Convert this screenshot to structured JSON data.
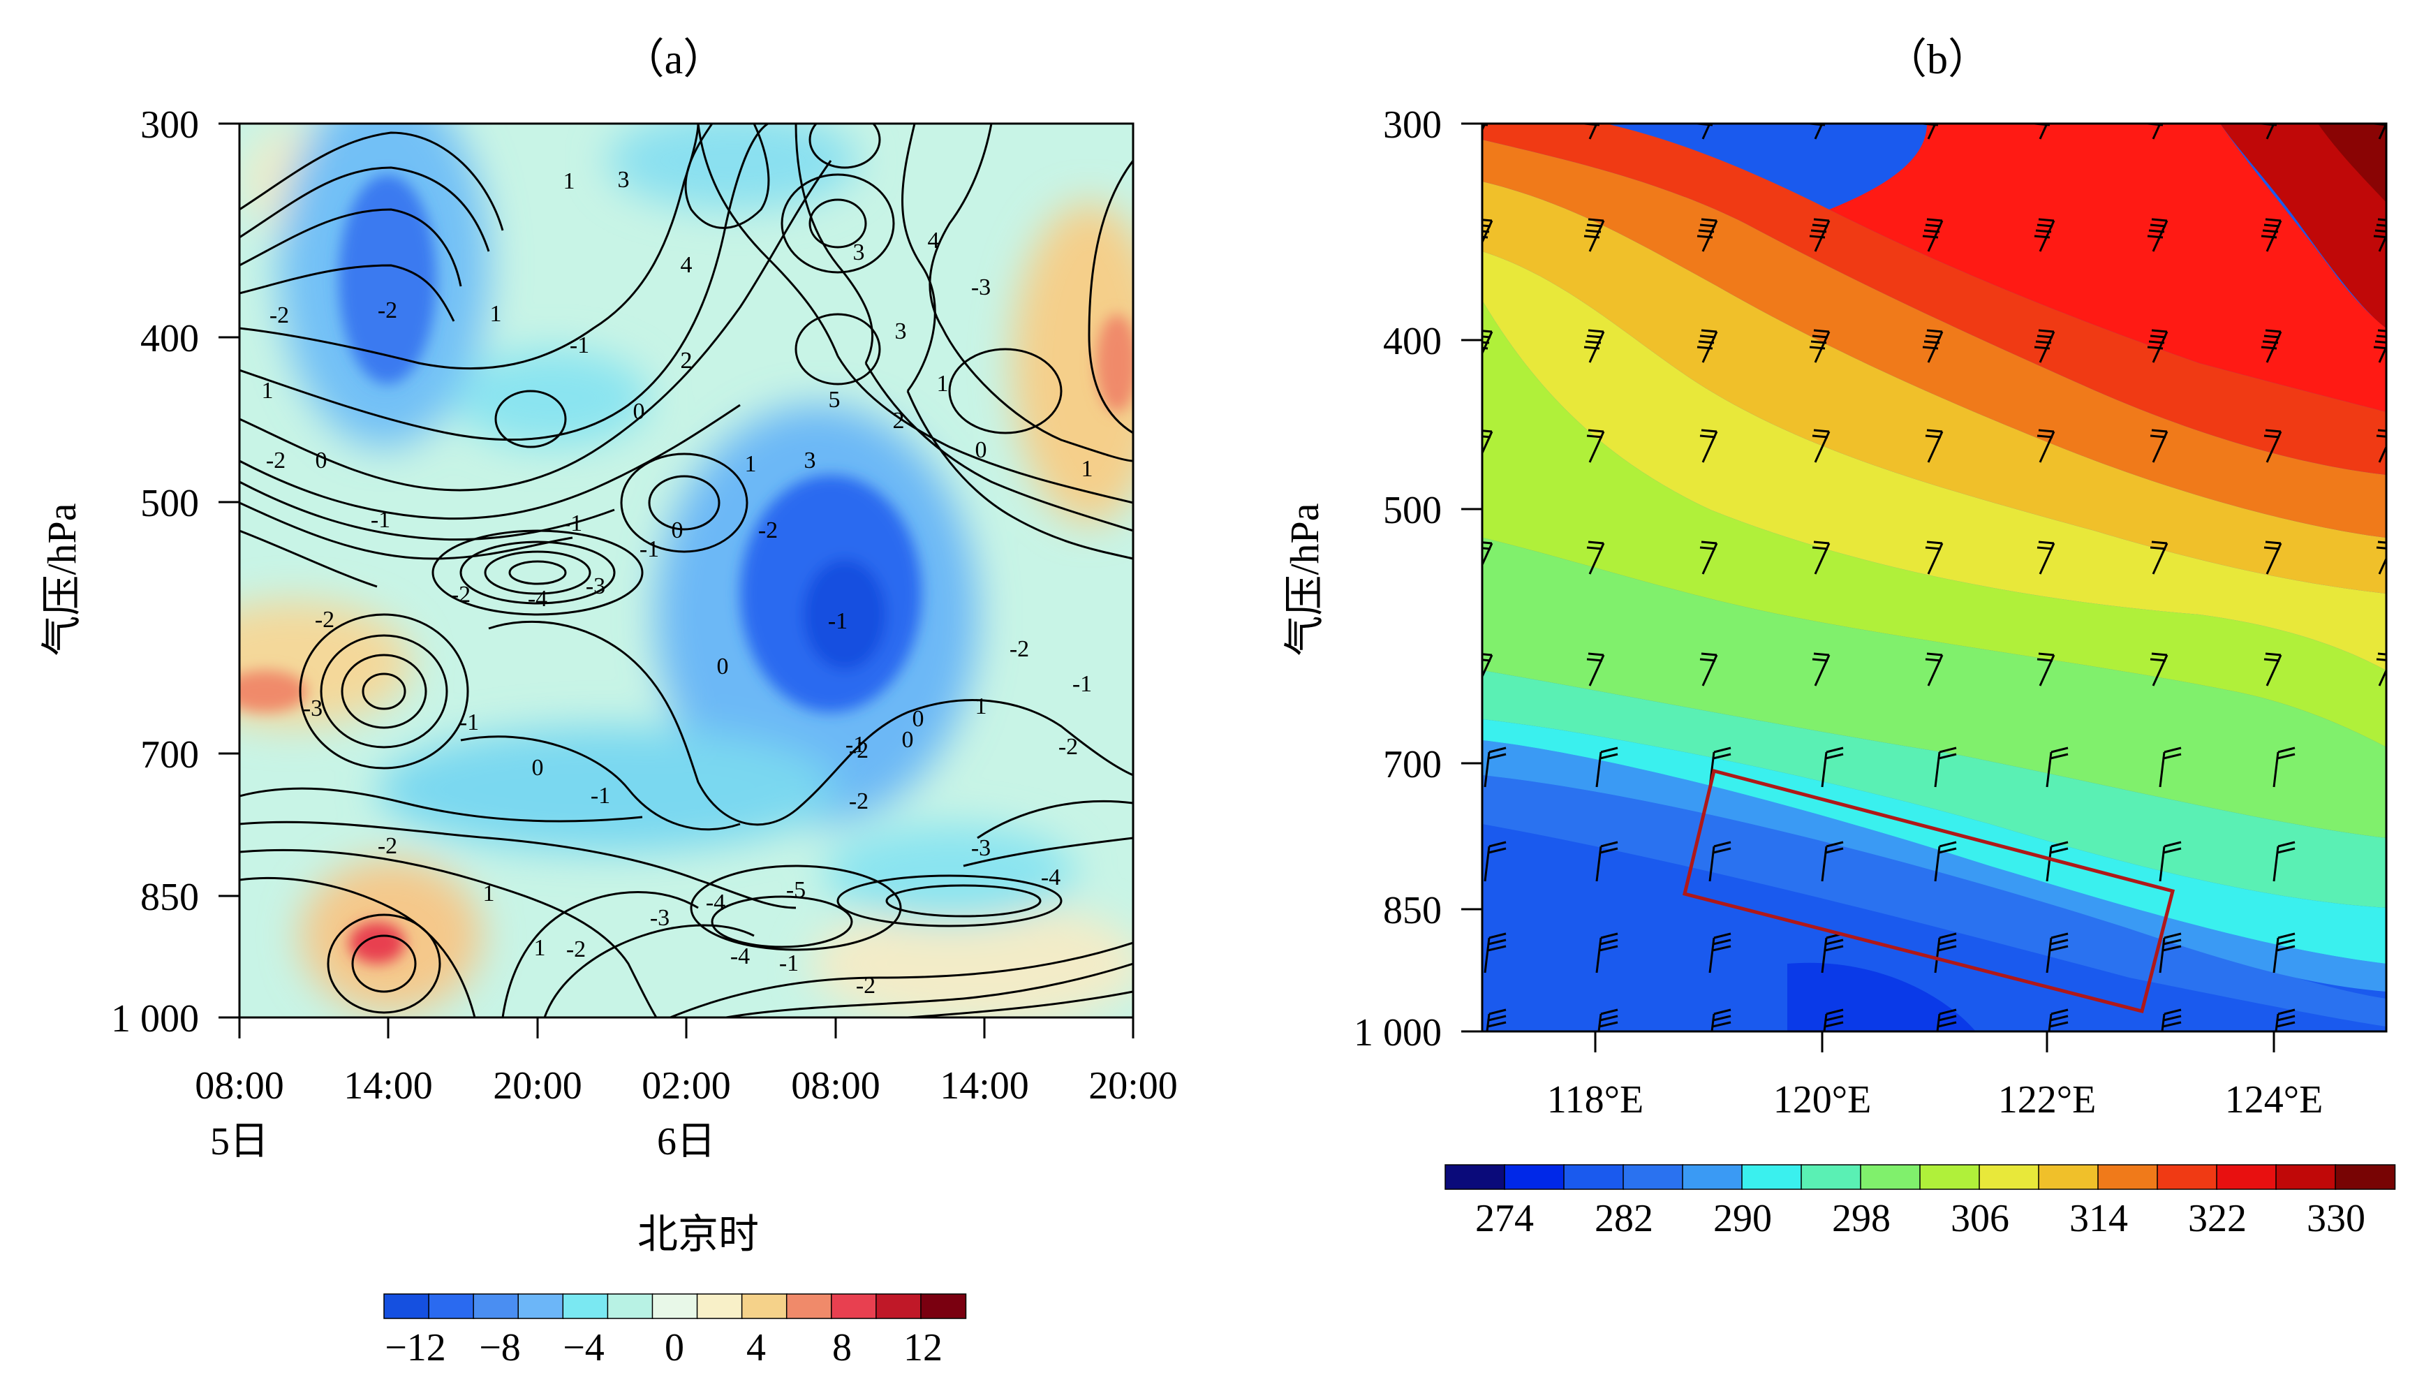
{
  "colors": {
    "panel_a_scale": [
      "#1550e0",
      "#2a6af0",
      "#4a8ef2",
      "#6cb6f8",
      "#7ae8f2",
      "#b8f2e4",
      "#e8f8e8",
      "#f8f0c8",
      "#f5d28a",
      "#f08a6a",
      "#e84050",
      "#c01828",
      "#7a0010"
    ],
    "panel_b_scale": [
      "#0a0a7a",
      "#0028e8",
      "#1a5aee",
      "#2a72f0",
      "#3a9af4",
      "#3af0ee",
      "#5af0b4",
      "#80f06c",
      "#b0f03a",
      "#e8e83a",
      "#f0c02a",
      "#f07a1a",
      "#f03a14",
      "#e81010",
      "#c00808",
      "#780404"
    ],
    "box_red": "#b01818"
  },
  "chart_data": [
    {
      "type": "heatmap",
      "panel_label": "（a）",
      "title": "（a）",
      "xlabel": "北京时",
      "ylabel": "气压/hPa",
      "x_tick_labels": [
        "08:00",
        "14:00",
        "20:00",
        "02:00",
        "08:00",
        "14:00",
        "20:00"
      ],
      "x_day_labels": [
        {
          "at": "08:00",
          "label": "5日"
        },
        {
          "at": "02:00",
          "label": "6日"
        }
      ],
      "y_ticks": [
        300,
        400,
        500,
        700,
        850,
        1000
      ],
      "y_tick_labels": [
        "300",
        "400",
        "500",
        "700",
        "850",
        "1 000"
      ],
      "ylim": [
        300,
        1000
      ],
      "contour_labels": [
        "1",
        "3",
        "-2",
        "-2",
        "1",
        "2",
        "-1",
        "1",
        "-2",
        "0",
        "-1",
        "4",
        "2",
        "0",
        "1",
        "3",
        "-2",
        "3",
        "1",
        "4",
        "-3",
        "3",
        "5",
        "2",
        "0",
        "1",
        "-1",
        "0",
        "-1",
        "-4",
        "-3",
        "-2",
        "-2",
        "-3",
        "-1",
        "-1",
        "0",
        "-2",
        "-1",
        "0",
        "1",
        "-1",
        "-2",
        "0",
        "-2",
        "-1",
        "-2",
        "1",
        "-3",
        "-4",
        "-5",
        "-4",
        "-3",
        "-4",
        "-2",
        "-2",
        "-1",
        "1",
        "0",
        "-2"
      ],
      "colorbar": {
        "ticks": [
          -12,
          -8,
          -4,
          0,
          4,
          8,
          12
        ],
        "tick_labels": [
          "−12",
          "−8",
          "−4",
          "0",
          "4",
          "8",
          "12"
        ]
      }
    },
    {
      "type": "heatmap",
      "panel_label": "（b）",
      "title": "（b）",
      "ylabel": "气压/hPa",
      "x_tick_labels": [
        "118°E",
        "120°E",
        "122°E",
        "124°E"
      ],
      "x_ticks": [
        118,
        120,
        122,
        124
      ],
      "xlim": [
        117,
        125
      ],
      "y_ticks": [
        300,
        400,
        500,
        700,
        850,
        1000
      ],
      "y_tick_labels": [
        "300",
        "400",
        "500",
        "700",
        "850",
        "1 000"
      ],
      "ylim": [
        300,
        1000
      ],
      "colorbar": {
        "ticks": [
          274,
          282,
          290,
          298,
          306,
          314,
          322,
          330
        ],
        "tick_labels": [
          "274",
          "282",
          "290",
          "298",
          "306",
          "314",
          "322",
          "330"
        ]
      },
      "annotation": "red box"
    }
  ]
}
